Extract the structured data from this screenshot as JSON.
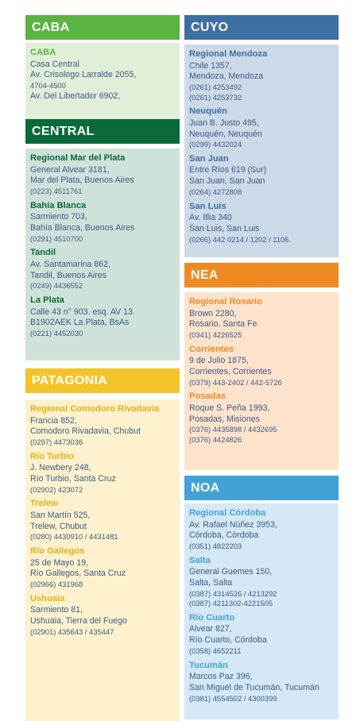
{
  "sections": {
    "caba": {
      "title": "CABA",
      "entries": [
        {
          "name": "CABA",
          "lines": [
            "Casa Central",
            "Av. Crisologo Larralde 2055,"
          ],
          "phones": [
            "4704-4500"
          ],
          "after": [
            "Av. Del Libertador 6902,"
          ]
        }
      ]
    },
    "central": {
      "title": "CENTRAL",
      "entries": [
        {
          "name": "Regional Mar del Plata",
          "lines": [
            "General Alvear 3181,",
            "Mar del Plata, Buenos Aires"
          ],
          "phones": [
            "(0223) 4511761"
          ]
        },
        {
          "name": "Bahía Blanca",
          "lines": [
            "Sarmiento 703,",
            "Bahía Blanca, Buenos Aires"
          ],
          "phones": [
            "(0291) 4510700"
          ]
        },
        {
          "name": "Tandil",
          "lines": [
            "Av. Santamarina 862,",
            "Tandil, Buenos Aires"
          ],
          "phones": [
            "(0249) 4436552"
          ]
        },
        {
          "name": "La Plata",
          "lines": [
            "Calle 43 n° 903. esq. AV 13.",
            "B1902AEK La Plata, BsAs"
          ],
          "phones": [
            "(0221) 4452030"
          ]
        }
      ]
    },
    "patagonia": {
      "title": "PATAGONIA",
      "entries": [
        {
          "name": "Regional Comodoro Rivadavia",
          "lines": [
            "Francia 852,",
            "Comodoro Rivadavia, Chubut"
          ],
          "phones": [
            "(0297) 4473036"
          ]
        },
        {
          "name": "Río Turbio",
          "lines": [
            "J. Newbery 248,",
            "Río Turbio, Santa Cruz"
          ],
          "phones": [
            "(02902) 423072"
          ]
        },
        {
          "name": "Trelew",
          "lines": [
            "San Martín 525,",
            "Trelew, Chubut"
          ],
          "phones": [
            "(0280) 4430910 / 4431481"
          ]
        },
        {
          "name": "Río Gallegos",
          "lines": [
            "25 de Mayo 19,",
            "Río Gallegos, Santa Cruz"
          ],
          "phones": [
            "(02966) 431968"
          ]
        },
        {
          "name": "Ushuaia",
          "lines": [
            "Sarmiento 81,",
            "Ushuaia, Tierra del Fuego"
          ],
          "phones": [
            "(02901) 435643 / 435447"
          ]
        }
      ]
    },
    "cuyo": {
      "title": "CUYO",
      "entries": [
        {
          "name": "Regional Mendoza",
          "lines": [
            "Chile 1357,",
            "Mendoza, Mendoza"
          ],
          "phones": [
            "(0261) 4253492",
            "(0261) 4253732"
          ]
        },
        {
          "name": "Neuquén",
          "lines": [
            "Juan B. Justo 495,",
            "Neuquén, Neuquén"
          ],
          "phones": [
            "(0299) 4432024"
          ]
        },
        {
          "name": "San Juan",
          "lines": [
            "Entre Ríos 619 (Sur)",
            "San Juan, San Juan"
          ],
          "phones": [
            "(0264) 4272808"
          ]
        },
        {
          "name": "San Luis",
          "lines": [
            "Av. Illia 340",
            "San Luis, San Luis"
          ],
          "phones": [
            "(0266) 442 0214 / 1202 / 1105."
          ]
        }
      ]
    },
    "nea": {
      "title": "NEA",
      "entries": [
        {
          "name": "Regional Rosario",
          "lines": [
            "Brown 2280,",
            "Rosario, Santa Fe"
          ],
          "phones": [
            "(0341) 4226525"
          ]
        },
        {
          "name": "Corrientes",
          "lines": [
            "9 de Julio 1875,",
            "Corrientes, Corrientes"
          ],
          "phones": [
            "(0379) 443-2402 / 442-5726"
          ]
        },
        {
          "name": "Posadas",
          "lines": [
            "Roque S. Peña 1993,",
            "Posadas, Misiones"
          ],
          "phones": [
            "(0376) 4435898 / 4432695",
            "(0376) 4424826"
          ]
        }
      ]
    },
    "noa": {
      "title": "NOA",
      "entries": [
        {
          "name": "Regional Córdoba",
          "lines": [
            "Av. Rafael Núñez 3953,",
            "Córdoba, Córdoba"
          ],
          "phones": [
            "(0351) 4822203"
          ]
        },
        {
          "name": "Salta",
          "lines": [
            "General Guemes 150,",
            "Salta, Salta"
          ],
          "phones": [
            "(0387) 4314526 / 4213292",
            "(0387) 4211302-4221505"
          ]
        },
        {
          "name": "Río Cuarto",
          "lines": [
            "Alvear 827,",
            "Río Cuarto, Córdoba"
          ],
          "phones": [
            "(0358) 4652211"
          ]
        },
        {
          "name": "Tucumán",
          "lines": [
            "Marcos Paz 396,",
            "San Miguel de Tucumán, Tucumán"
          ],
          "phones": [
            "(0381) 4554502 / 4300399"
          ]
        }
      ]
    }
  },
  "colors": {
    "caba": "#5bb342",
    "central": "#0b6a3a",
    "patagonia": "#f5c327",
    "cuyo": "#3d6fa3",
    "nea": "#ef8a23",
    "noa": "#42a2d8",
    "text": "#3d5a86"
  }
}
